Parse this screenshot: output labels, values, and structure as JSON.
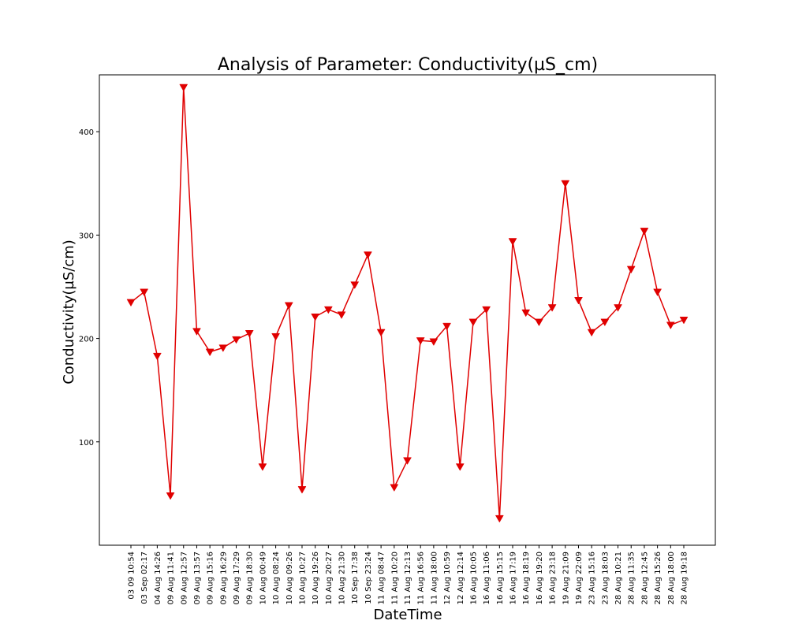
{
  "chart_data": {
    "type": "line",
    "title": "Analysis of Parameter: Conductivity(µS_cm)",
    "xlabel": "DateTime",
    "ylabel": "Conductivity(µS/cm)",
    "ylim": [
      0,
      455
    ],
    "yticks": [
      100,
      200,
      300,
      400
    ],
    "grid": false,
    "marker": "triangle-down",
    "series": [
      {
        "color": "#e00000",
        "values": [
          235,
          245,
          183,
          48,
          443,
          207,
          187,
          191,
          199,
          205,
          76,
          202,
          232,
          54,
          221,
          228,
          223,
          252,
          281,
          206,
          56,
          82,
          198,
          197,
          212,
          76,
          216,
          228,
          26,
          294,
          225,
          216,
          230,
          350,
          237,
          206,
          216,
          230,
          267,
          304,
          245,
          213,
          218
        ]
      }
    ],
    "categories": [
      "03 09 10:54",
      "03 Sep 02:17",
      "04 Aug 14:26",
      "09 Aug 11:41",
      "09 Aug 12:57",
      "09 Aug 13:57",
      "09 Aug 15:16",
      "09 Aug 16:29",
      "09 Aug 17:29",
      "09 Aug 18:30",
      "10 Aug 00:49",
      "10 Aug 08:24",
      "10 Aug 09:26",
      "10 Aug 10:27",
      "10 Aug 19:26",
      "10 Aug 20:27",
      "10 Aug 21:30",
      "10 Sep 17:38",
      "10 Sep 23:24",
      "11 Aug 08:47",
      "11 Aug 10:20",
      "11 Aug 12:13",
      "11 Aug 16:56",
      "11 Aug 18:00",
      "12 Aug 10:59",
      "12 Aug 12:14",
      "16 Aug 10:05",
      "16 Aug 11:06",
      "16 Aug 15:15",
      "16 Aug 17:19",
      "16 Aug 18:19",
      "16 Aug 19:20",
      "16 Aug 23:18",
      "19 Aug 21:09",
      "19 Aug 22:09",
      "23 Aug 15:16",
      "23 Aug 18:03",
      "28 Aug 10:21",
      "28 Aug 11:35",
      "28 Aug 12:45",
      "28 Aug 15:26",
      "28 Aug 18:00",
      "28 Aug 19:18"
    ]
  }
}
